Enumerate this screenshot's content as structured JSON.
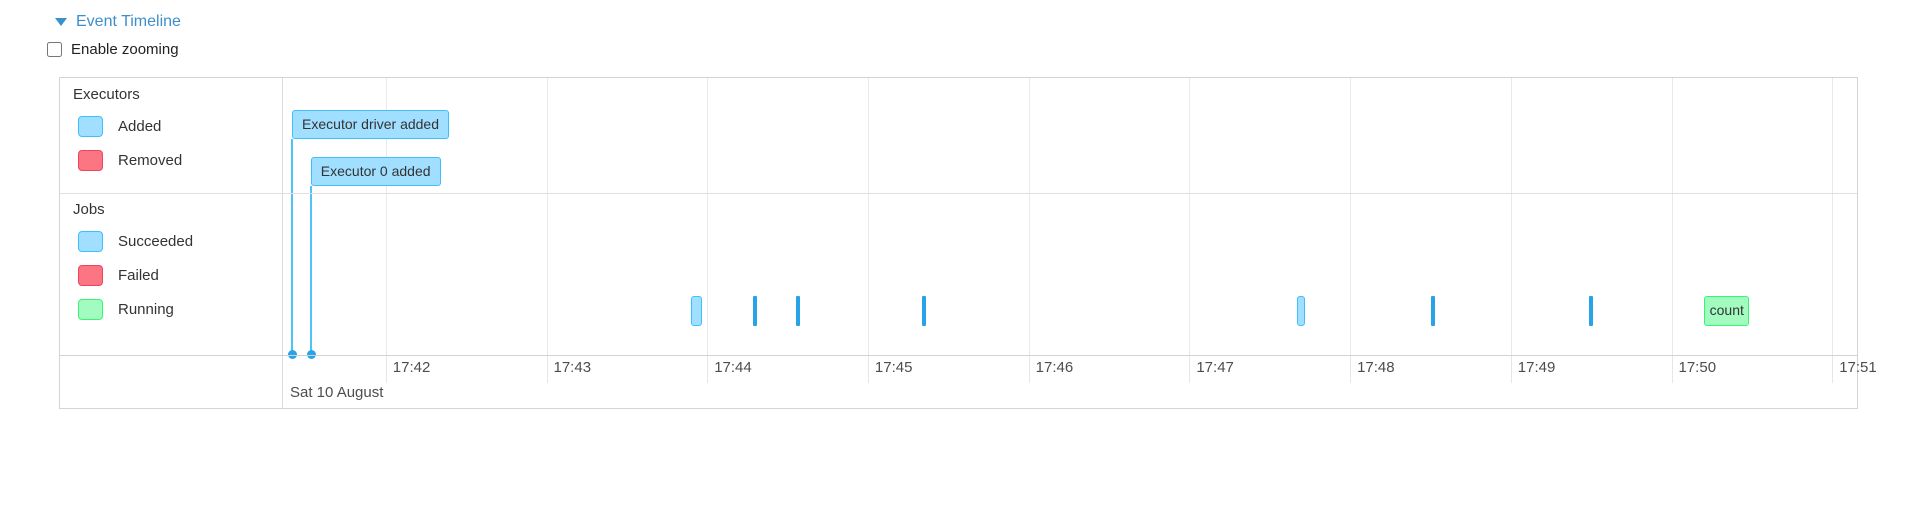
{
  "header": {
    "title": "Event Timeline"
  },
  "controls": {
    "enable_zooming_label": "Enable zooming",
    "checked": false
  },
  "colors": {
    "link_blue": "#3d8fcc",
    "added_fill": "#A0DFFF",
    "added_border": "#3EC0FF",
    "removed_fill": "#FB7583",
    "removed_border": "#F0435C",
    "succeeded_fill": "#A0DFFF",
    "succeeded_border": "#3EC0FF",
    "failed_fill": "#FB7583",
    "failed_border": "#F0435C",
    "running_fill": "#A2FCC0",
    "running_border": "#36F572",
    "marker_blue": "#29A3E8",
    "anchor_line_blue": "#4FC3F7"
  },
  "legend": {
    "executors": {
      "title": "Executors",
      "items": [
        {
          "label": "Added",
          "status": "added"
        },
        {
          "label": "Removed",
          "status": "removed"
        }
      ]
    },
    "jobs": {
      "title": "Jobs",
      "items": [
        {
          "label": "Succeeded",
          "status": "succeeded"
        },
        {
          "label": "Failed",
          "status": "failed"
        },
        {
          "label": "Running",
          "status": "running"
        }
      ]
    }
  },
  "chart_data": {
    "type": "timeline",
    "axis": {
      "start": "17:41:22",
      "end": "17:51:10",
      "ticks": [
        {
          "time": "17:42:00",
          "label": "17:42"
        },
        {
          "time": "17:43:00",
          "label": "17:43"
        },
        {
          "time": "17:44:00",
          "label": "17:44"
        },
        {
          "time": "17:45:00",
          "label": "17:45"
        },
        {
          "time": "17:46:00",
          "label": "17:46"
        },
        {
          "time": "17:47:00",
          "label": "17:47"
        },
        {
          "time": "17:48:00",
          "label": "17:48"
        },
        {
          "time": "17:49:00",
          "label": "17:49"
        },
        {
          "time": "17:50:00",
          "label": "17:50"
        },
        {
          "time": "17:51:00",
          "label": "17:51"
        }
      ],
      "date_label": "Sat 10 August"
    },
    "executor_events": [
      {
        "label": "Executor driver added",
        "time": "17:41:25",
        "status": "added"
      },
      {
        "label": "Executor 0 added",
        "time": "17:41:32",
        "status": "added"
      }
    ],
    "job_events": [
      {
        "start": "17:43:54",
        "end": "17:43:58",
        "status": "succeeded",
        "shape": "range"
      },
      {
        "start": "17:44:18",
        "status": "succeeded",
        "shape": "point"
      },
      {
        "start": "17:44:34",
        "status": "succeeded",
        "shape": "point"
      },
      {
        "start": "17:45:21",
        "status": "succeeded",
        "shape": "point"
      },
      {
        "start": "17:47:40",
        "end": "17:47:43",
        "status": "succeeded",
        "shape": "range"
      },
      {
        "start": "17:48:31",
        "status": "succeeded",
        "shape": "point"
      },
      {
        "start": "17:49:30",
        "status": "succeeded",
        "shape": "point"
      },
      {
        "label": "count",
        "start": "17:50:12",
        "end": "17:50:29",
        "status": "running",
        "shape": "labeled-range"
      }
    ]
  }
}
